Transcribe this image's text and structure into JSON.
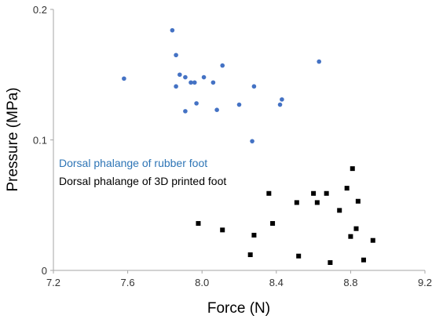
{
  "chart_data": {
    "type": "scatter",
    "xlabel": "Force (N)",
    "ylabel": "Pressure (MPa)",
    "xlim": [
      7.2,
      9.2
    ],
    "ylim": [
      0,
      0.2
    ],
    "x_ticks": [
      7.2,
      7.6,
      8.0,
      8.4,
      8.8,
      9.2
    ],
    "x_tick_labels": [
      "7.2",
      "7.6",
      "8.0",
      "8.4",
      "8.8",
      "9.2"
    ],
    "y_ticks": [
      0,
      0.1,
      0.2
    ],
    "y_tick_labels": [
      "0",
      "0.1",
      "0.2"
    ],
    "grid": false,
    "legend_placement": "middle-left",
    "series": [
      {
        "name": "Dorsal phalange of rubber foot",
        "color": "#4472C4",
        "label_color": "#2E75B6",
        "marker": "circle",
        "points": [
          [
            7.58,
            0.147
          ],
          [
            7.84,
            0.184
          ],
          [
            7.86,
            0.165
          ],
          [
            7.86,
            0.141
          ],
          [
            7.88,
            0.15
          ],
          [
            7.91,
            0.148
          ],
          [
            7.91,
            0.122
          ],
          [
            7.94,
            0.144
          ],
          [
            7.96,
            0.144
          ],
          [
            7.97,
            0.128
          ],
          [
            8.01,
            0.148
          ],
          [
            8.06,
            0.144
          ],
          [
            8.08,
            0.123
          ],
          [
            8.11,
            0.157
          ],
          [
            8.2,
            0.127
          ],
          [
            8.27,
            0.099
          ],
          [
            8.28,
            0.141
          ],
          [
            8.42,
            0.127
          ],
          [
            8.43,
            0.131
          ],
          [
            8.63,
            0.16
          ]
        ]
      },
      {
        "name": "Dorsal phalange of 3D printed foot",
        "color": "#000000",
        "label_color": "#000000",
        "marker": "square",
        "points": [
          [
            7.98,
            0.036
          ],
          [
            8.11,
            0.031
          ],
          [
            8.26,
            0.012
          ],
          [
            8.28,
            0.027
          ],
          [
            8.36,
            0.059
          ],
          [
            8.38,
            0.036
          ],
          [
            8.51,
            0.052
          ],
          [
            8.52,
            0.011
          ],
          [
            8.6,
            0.059
          ],
          [
            8.62,
            0.052
          ],
          [
            8.67,
            0.059
          ],
          [
            8.69,
            0.006
          ],
          [
            8.74,
            0.046
          ],
          [
            8.78,
            0.063
          ],
          [
            8.8,
            0.026
          ],
          [
            8.81,
            0.078
          ],
          [
            8.83,
            0.032
          ],
          [
            8.84,
            0.053
          ],
          [
            8.87,
            0.008
          ],
          [
            8.92,
            0.023
          ]
        ]
      }
    ]
  }
}
